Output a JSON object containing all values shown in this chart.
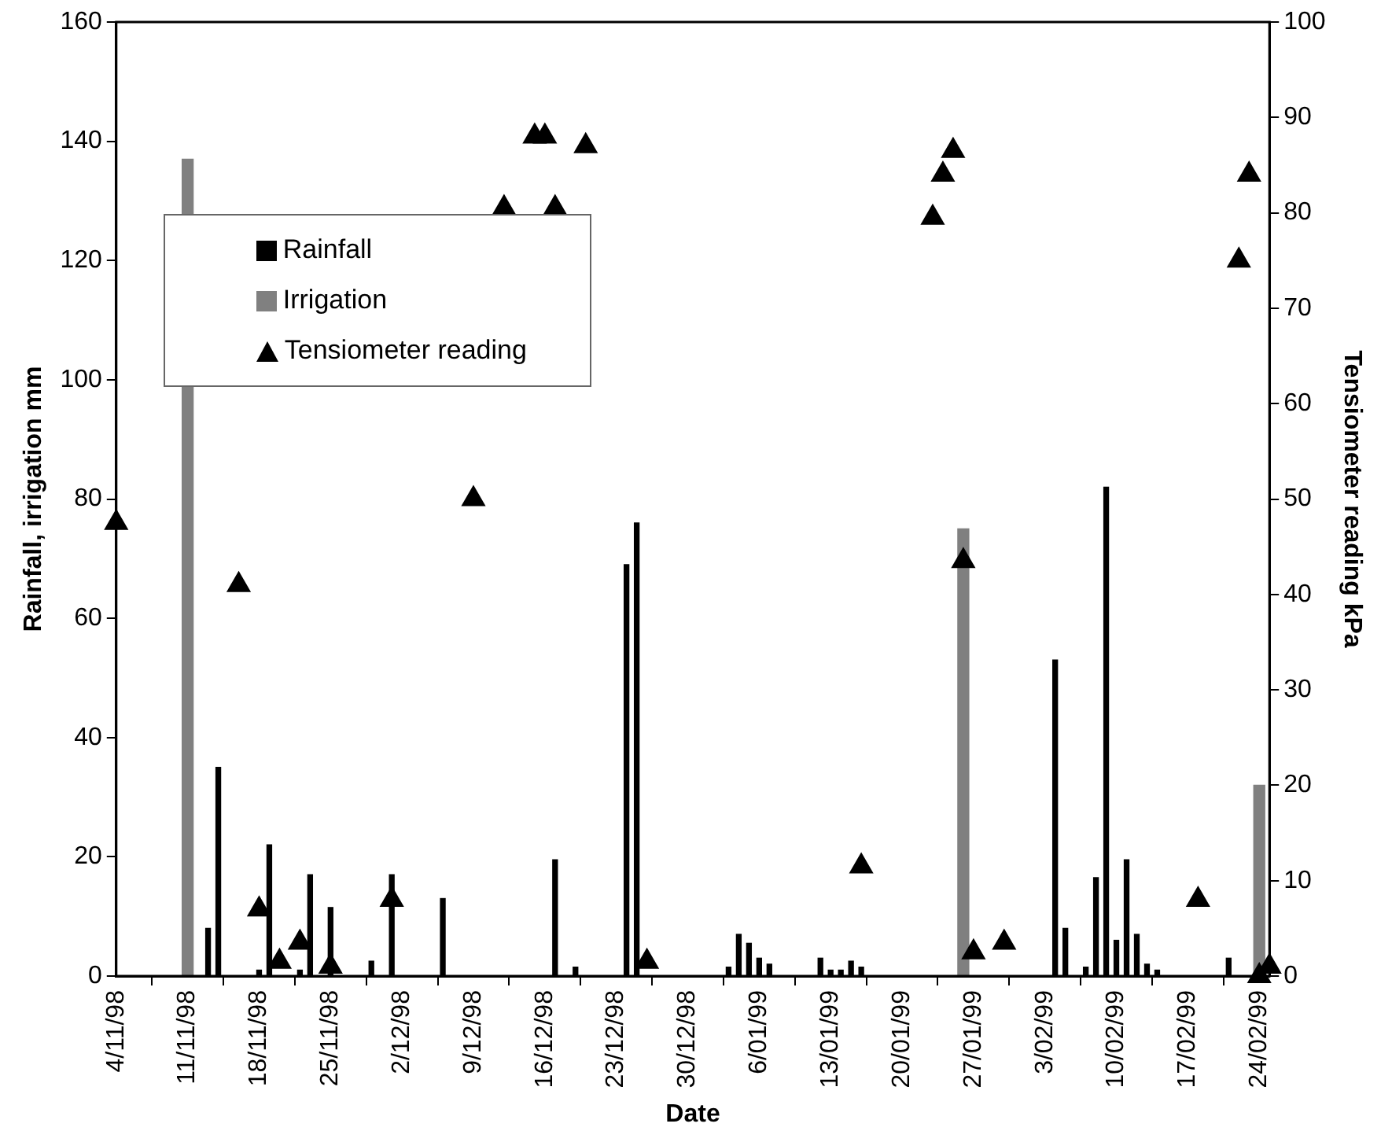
{
  "chart_data": {
    "type": "bar",
    "xlabel": "Date",
    "ylabel": "Rainfall, irrigation mm",
    "y2label": "Tensiometer reading kPa",
    "xlim": [
      "1998-11-04",
      "1999-02-25"
    ],
    "xticks": [
      {
        "value": "1998-11-04",
        "label": "4/11/98"
      },
      {
        "value": "1998-11-11",
        "label": "11/11/98"
      },
      {
        "value": "1998-11-18",
        "label": "18/11/98"
      },
      {
        "value": "1998-11-25",
        "label": "25/11/98"
      },
      {
        "value": "1998-12-02",
        "label": "2/12/98"
      },
      {
        "value": "1998-12-09",
        "label": "9/12/98"
      },
      {
        "value": "1998-12-16",
        "label": "16/12/98"
      },
      {
        "value": "1998-12-23",
        "label": "23/12/98"
      },
      {
        "value": "1998-12-30",
        "label": "30/12/98"
      },
      {
        "value": "1999-01-06",
        "label": "6/01/99"
      },
      {
        "value": "1999-01-13",
        "label": "13/01/99"
      },
      {
        "value": "1999-01-20",
        "label": "20/01/99"
      },
      {
        "value": "1999-01-27",
        "label": "27/01/99"
      },
      {
        "value": "1999-02-03",
        "label": "3/02/99"
      },
      {
        "value": "1999-02-10",
        "label": "10/02/99"
      },
      {
        "value": "1999-02-17",
        "label": "17/02/99"
      },
      {
        "value": "1999-02-24",
        "label": "24/02/99"
      }
    ],
    "ylim": [
      0,
      160
    ],
    "yticks": [
      0,
      20,
      40,
      60,
      80,
      100,
      120,
      140,
      160
    ],
    "y2lim": [
      0,
      100
    ],
    "y2ticks": [
      0,
      10,
      20,
      30,
      40,
      50,
      60,
      70,
      80,
      90,
      100
    ],
    "grid": false,
    "legend": "top left",
    "series": [
      {
        "name": "Rainfall",
        "color": "#000000",
        "x": [
          "1998-11-13",
          "1998-11-14",
          "1998-11-18",
          "1998-11-19",
          "1998-11-22",
          "1998-11-23",
          "1998-11-25",
          "1998-11-29",
          "1998-12-01",
          "1998-12-06",
          "1998-12-17",
          "1998-12-19",
          "1998-12-24",
          "1998-12-25",
          "1999-01-03",
          "1999-01-04",
          "1999-01-05",
          "1999-01-06",
          "1999-01-07",
          "1999-01-12",
          "1999-01-13",
          "1999-01-14",
          "1999-01-15",
          "1999-01-16",
          "1999-02-04",
          "1999-02-05",
          "1999-02-07",
          "1999-02-08",
          "1999-02-09",
          "1999-02-10",
          "1999-02-11",
          "1999-02-12",
          "1999-02-13",
          "1999-02-14",
          "1999-02-21"
        ],
        "values": [
          8,
          35,
          1,
          22,
          1,
          17,
          11.5,
          2.5,
          17,
          13,
          19.5,
          1.5,
          69,
          76,
          1.5,
          7,
          5.5,
          3,
          2,
          3,
          1,
          1,
          2.5,
          1.5,
          53,
          8,
          1.5,
          16.5,
          82,
          6,
          19.5,
          7,
          2,
          1,
          3
        ]
      },
      {
        "name": "Irrigation",
        "color": "#808080",
        "x": [
          "1998-11-11",
          "1999-01-26",
          "1999-02-24"
        ],
        "values": [
          137,
          75,
          32
        ]
      },
      {
        "name": "Tensiometer reading",
        "type": "scatter",
        "axis": "y2",
        "marker": "triangle",
        "color": "#000000",
        "x": [
          "1998-11-04",
          "1998-11-16",
          "1998-11-18",
          "1998-11-20",
          "1998-11-22",
          "1998-11-25",
          "1998-12-01",
          "1998-12-09",
          "1998-12-12",
          "1998-12-15",
          "1998-12-16",
          "1998-12-17",
          "1998-12-20",
          "1998-12-26",
          "1999-01-16",
          "1999-01-23",
          "1999-01-24",
          "1999-01-25",
          "1999-01-26",
          "1999-01-27",
          "1999-01-30",
          "1999-02-18",
          "1999-02-22",
          "1999-02-23",
          "1999-02-24",
          "1999-02-25"
        ],
        "values": [
          47.5,
          41,
          7,
          1.5,
          3.5,
          1,
          8,
          50,
          80.5,
          88,
          88,
          80.5,
          87,
          1.5,
          11.5,
          79.5,
          84,
          86.5,
          43.5,
          2.5,
          3.5,
          8,
          75,
          84,
          0,
          1
        ]
      }
    ]
  }
}
